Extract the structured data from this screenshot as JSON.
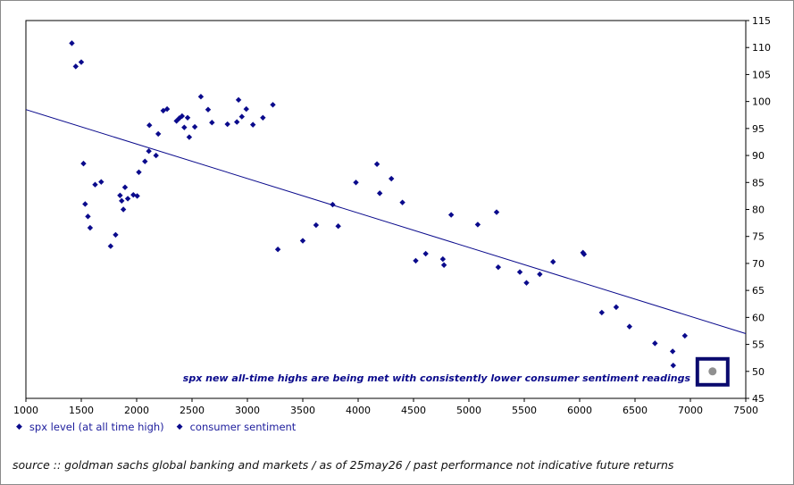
{
  "chart_data": {
    "type": "scatter",
    "xlim": [
      1000,
      7500
    ],
    "ylim": [
      45,
      115
    ],
    "x_ticks": [
      1000,
      1500,
      2000,
      2500,
      3000,
      3500,
      4000,
      4500,
      5000,
      5500,
      6000,
      6500,
      7000,
      7500
    ],
    "y_ticks": [
      45,
      50,
      55,
      60,
      65,
      70,
      75,
      80,
      85,
      90,
      95,
      100,
      105,
      110,
      115
    ],
    "y_axis_side": "right",
    "grid": false,
    "legend_placement": "bottom-left",
    "series": [
      {
        "name": "spx level (at all time high)",
        "color": "#0a0a8c",
        "marker": "diamond",
        "points": [
          [
            1415,
            110.8
          ],
          [
            1450,
            106.5
          ],
          [
            1500,
            107.3
          ],
          [
            1520,
            88.5
          ],
          [
            1535,
            81.0
          ],
          [
            1560,
            78.7
          ],
          [
            1580,
            76.6
          ],
          [
            1625,
            84.6
          ],
          [
            1680,
            85.1
          ],
          [
            1765,
            73.2
          ],
          [
            1810,
            75.3
          ],
          [
            1850,
            82.6
          ],
          [
            1865,
            81.6
          ],
          [
            1880,
            80.0
          ],
          [
            1895,
            84.1
          ],
          [
            1920,
            82.0
          ],
          [
            1970,
            82.7
          ],
          [
            2005,
            82.5
          ],
          [
            2020,
            86.9
          ],
          [
            2075,
            88.9
          ],
          [
            2110,
            90.8
          ],
          [
            2115,
            95.6
          ],
          [
            2175,
            90.0
          ],
          [
            2195,
            94.0
          ],
          [
            2240,
            98.3
          ],
          [
            2275,
            98.6
          ],
          [
            2360,
            96.4
          ],
          [
            2385,
            96.9
          ],
          [
            2410,
            97.3
          ],
          [
            2430,
            95.2
          ],
          [
            2460,
            97.0
          ],
          [
            2475,
            93.4
          ],
          [
            2525,
            95.3
          ],
          [
            2580,
            100.9
          ],
          [
            2645,
            98.5
          ],
          [
            2680,
            96.1
          ],
          [
            2820,
            95.8
          ],
          [
            2905,
            96.2
          ],
          [
            2920,
            100.3
          ],
          [
            2950,
            97.2
          ],
          [
            2990,
            98.6
          ],
          [
            3050,
            95.7
          ],
          [
            3140,
            97.0
          ],
          [
            3230,
            99.4
          ],
          [
            3275,
            72.6
          ],
          [
            3500,
            74.2
          ],
          [
            3620,
            77.1
          ],
          [
            3770,
            80.9
          ],
          [
            3820,
            76.9
          ],
          [
            3980,
            85.0
          ],
          [
            4170,
            88.4
          ],
          [
            4195,
            83.0
          ],
          [
            4300,
            85.7
          ],
          [
            4400,
            81.3
          ],
          [
            4520,
            70.5
          ],
          [
            4610,
            71.8
          ],
          [
            4765,
            70.8
          ],
          [
            4775,
            69.7
          ],
          [
            4840,
            79.0
          ],
          [
            5080,
            77.2
          ],
          [
            5250,
            79.5
          ],
          [
            5265,
            69.3
          ],
          [
            5460,
            68.4
          ],
          [
            5520,
            66.4
          ],
          [
            5640,
            68.0
          ],
          [
            5760,
            70.3
          ],
          [
            6030,
            72.0
          ],
          [
            6040,
            71.7
          ],
          [
            6200,
            60.9
          ],
          [
            6330,
            61.9
          ],
          [
            6450,
            58.3
          ],
          [
            6680,
            55.2
          ],
          [
            6840,
            53.7
          ],
          [
            6845,
            51.1
          ],
          [
            6950,
            56.6
          ]
        ]
      },
      {
        "name": "consumer sentiment",
        "color": "#0a0a8c",
        "marker": "diamond",
        "points": []
      }
    ],
    "trendline": {
      "color": "#0a0a8c",
      "x": [
        1000,
        7500
      ],
      "y": [
        98.5,
        57.0
      ]
    },
    "latest_marker": {
      "x": 7200,
      "y": 50.0,
      "marker_color": "#909090",
      "box_color": "#0a0a6e"
    },
    "annotation": "spx new all-time highs are being met with consistently lower consumer sentiment readings"
  },
  "legend": {
    "items": [
      {
        "label": "spx level (at all time high)"
      },
      {
        "label": "consumer sentiment"
      }
    ]
  },
  "footer": {
    "source": "source :: goldman sachs global banking and markets / as of 25may26 / past performance not indicative future returns"
  }
}
